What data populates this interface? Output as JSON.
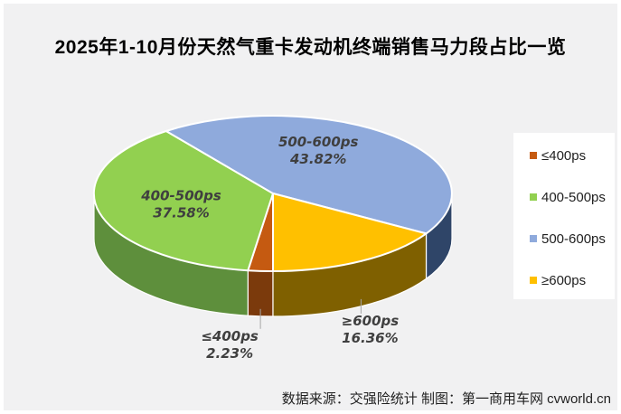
{
  "source": "数据来源：交强险统计 制图：第一商用车网 cvworld.cn",
  "background_color": "#F1F1F2",
  "chart_data": {
    "type": "pie",
    "style": "3d",
    "title": "2025年1-10月份天然气重卡发动机终端销售马力段占比一览",
    "legend_position": "right",
    "direction": "clockwise",
    "start_angle_deg": 180,
    "categories": [
      "≤400ps",
      "400-500ps",
      "500-600ps",
      "≥600ps"
    ],
    "values": [
      2.23,
      37.58,
      43.82,
      16.36
    ],
    "percent_labels": [
      "2.23%",
      "37.58%",
      "43.82%",
      "16.36%"
    ],
    "colors": [
      "#C55A11",
      "#92D050",
      "#8FAADC",
      "#FFC000"
    ],
    "side_colors": [
      "#7B3A0C",
      "#5E8F3C",
      "#2F4568",
      "#7F6000"
    ],
    "label_color": "#3F3F3F",
    "leader_line_color": "#A6A6A6"
  },
  "legend": {
    "items": [
      {
        "label": "≤400ps",
        "color": "#C55A11"
      },
      {
        "label": "400-500ps",
        "color": "#92D050"
      },
      {
        "label": "500-600ps",
        "color": "#8FAADC"
      },
      {
        "label": "≥600ps",
        "color": "#FFC000"
      }
    ]
  }
}
